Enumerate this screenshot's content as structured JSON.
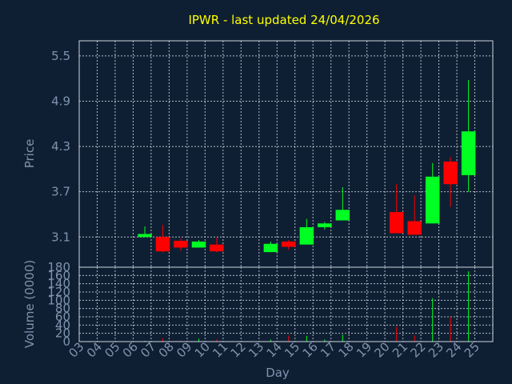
{
  "chart_data": [
    {
      "type": "candlestick",
      "title": "IPWR - last updated 24/04/2026",
      "ylabel": "Price",
      "ylim": [
        2.7,
        5.7
      ],
      "yticks": [
        "5.5",
        "4.9",
        "4.3",
        "3.7",
        "3.1"
      ],
      "ytick_values": [
        5.5,
        4.9,
        4.3,
        3.7,
        3.1
      ],
      "grid": true,
      "colors": {
        "up": "#00ff22",
        "down": "#ff0000",
        "background": "#0f1f33"
      },
      "candles": [
        {
          "day": 6,
          "open": 3.1,
          "high": 3.24,
          "low": 3.1,
          "close": 3.14
        },
        {
          "day": 7,
          "open": 3.1,
          "high": 3.26,
          "low": 2.9,
          "close": 2.91
        },
        {
          "day": 8,
          "open": 3.05,
          "high": 3.08,
          "low": 2.92,
          "close": 2.96
        },
        {
          "day": 9,
          "open": 2.96,
          "high": 3.06,
          "low": 2.96,
          "close": 3.04
        },
        {
          "day": 10,
          "open": 3.0,
          "high": 3.09,
          "low": 2.9,
          "close": 2.91
        },
        {
          "day": 13,
          "open": 2.9,
          "high": 3.04,
          "low": 2.9,
          "close": 3.01
        },
        {
          "day": 14,
          "open": 3.04,
          "high": 3.06,
          "low": 2.93,
          "close": 2.97
        },
        {
          "day": 15,
          "open": 3.0,
          "high": 3.34,
          "low": 3.0,
          "close": 3.23
        },
        {
          "day": 16,
          "open": 3.23,
          "high": 3.3,
          "low": 3.2,
          "close": 3.28
        },
        {
          "day": 17,
          "open": 3.32,
          "high": 3.76,
          "low": 3.32,
          "close": 3.46
        },
        {
          "day": 20,
          "open": 3.43,
          "high": 3.8,
          "low": 3.15,
          "close": 3.15
        },
        {
          "day": 21,
          "open": 3.31,
          "high": 3.65,
          "low": 3.13,
          "close": 3.13
        },
        {
          "day": 22,
          "open": 3.28,
          "high": 4.08,
          "low": 3.28,
          "close": 3.9
        },
        {
          "day": 23,
          "open": 4.1,
          "high": 4.16,
          "low": 3.5,
          "close": 3.8
        },
        {
          "day": 24,
          "open": 3.92,
          "high": 5.18,
          "low": 3.7,
          "close": 4.5
        }
      ]
    },
    {
      "type": "bar",
      "ylabel": "Volume (0000)",
      "xlabel": "Day",
      "ylim": [
        0,
        180
      ],
      "yticks": [
        "180",
        "160",
        "140",
        "120",
        "100",
        "80",
        "60",
        "40",
        "20",
        "0"
      ],
      "ytick_values": [
        180,
        160,
        140,
        120,
        100,
        80,
        60,
        40,
        20,
        0
      ],
      "categories": [
        "03",
        "04",
        "05",
        "06",
        "07",
        "08",
        "09",
        "10",
        "11",
        "12",
        "13",
        "14",
        "15",
        "16",
        "17",
        "18",
        "19",
        "20",
        "21",
        "22",
        "23",
        "24",
        "25"
      ],
      "grid": true,
      "bars": [
        {
          "day": 6,
          "value": 2,
          "direction": "up"
        },
        {
          "day": 7,
          "value": 8,
          "direction": "down"
        },
        {
          "day": 8,
          "value": 2,
          "direction": "down"
        },
        {
          "day": 9,
          "value": 7,
          "direction": "up"
        },
        {
          "day": 10,
          "value": 5,
          "direction": "down"
        },
        {
          "day": 13,
          "value": 5,
          "direction": "up"
        },
        {
          "day": 14,
          "value": 15,
          "direction": "down"
        },
        {
          "day": 15,
          "value": 14,
          "direction": "up"
        },
        {
          "day": 16,
          "value": 5,
          "direction": "up"
        },
        {
          "day": 17,
          "value": 17,
          "direction": "up"
        },
        {
          "day": 20,
          "value": 36,
          "direction": "down"
        },
        {
          "day": 21,
          "value": 15,
          "direction": "down"
        },
        {
          "day": 22,
          "value": 105,
          "direction": "up"
        },
        {
          "day": 23,
          "value": 60,
          "direction": "down"
        },
        {
          "day": 24,
          "value": 170,
          "direction": "up"
        }
      ]
    }
  ]
}
